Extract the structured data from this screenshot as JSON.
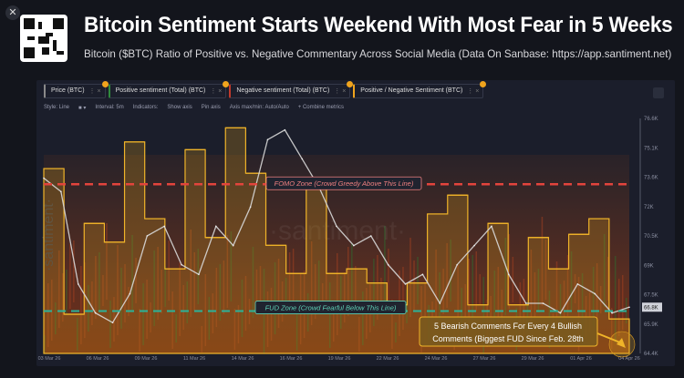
{
  "header": {
    "title": "Bitcoin Sentiment Starts Weekend With Most Fear in 5 Weeks",
    "subtitle": "Bitcoin ($BTC) Ratio of Positive vs. Negative Commentary Across Social Media (Data On Sanbase: https://app.santiment.net)",
    "close_icon": "close-icon",
    "qr_icon": "qr-code-icon"
  },
  "tabs": [
    {
      "label": "Price (BTC)",
      "color": "#8a8a8a"
    },
    {
      "label": "Positive sentiment (Total) (BTC)",
      "color": "#2f8a3c"
    },
    {
      "label": "Negative sentiment (Total) (BTC)",
      "color": "#c0392b"
    },
    {
      "label": "Positive / Negative Sentiment (BTC)",
      "color": "#f0a41d"
    }
  ],
  "options": {
    "style": "Style: Line",
    "interval": "Interval: 5m",
    "indicators": "Indicators:",
    "show_axis": "Show axis",
    "pin_axis": "Pin axis",
    "axis_maxmin": "Axis max/min: Auto/Auto",
    "combine": "+ Combine metrics"
  },
  "watermark": "·santiment·",
  "chart_data": {
    "type": "line",
    "x_ticks": [
      "03 Mar 26",
      "06 Mar 26",
      "09 Mar 26",
      "11 Mar 26",
      "14 Mar 26",
      "16 Mar 26",
      "19 Mar 26",
      "22 Mar 26",
      "24 Mar 26",
      "27 Mar 26",
      "29 Mar 26",
      "01 Apr 26",
      "04 Apr 26"
    ],
    "y_ticks": [
      "76.6K",
      "75.1K",
      "73.6K",
      "72K",
      "70.5K",
      "69K",
      "67.5K",
      "65.9K",
      "64.4K"
    ],
    "ylim": [
      64.4,
      76.6
    ],
    "current_price_label": "66.8K",
    "price_series": {
      "name": "Price (BTC)",
      "unit": "K USD",
      "values": [
        73.5,
        72.8,
        68,
        66.5,
        66,
        67.5,
        70.5,
        71,
        69,
        68.5,
        71,
        70,
        72,
        75.5,
        76,
        74.5,
        73,
        71,
        70,
        70.5,
        69,
        68,
        68.5,
        67,
        69,
        70,
        71,
        68.5,
        67,
        67,
        66.5,
        68,
        67.5,
        66.5,
        66.8
      ]
    },
    "ratio_series": {
      "name": "Positive / Negative Sentiment (BTC)",
      "values": [
        1.68,
        0.75,
        1.33,
        1.21,
        1.85,
        1.36,
        1.04,
        1.8,
        1.24,
        1.94,
        1.65,
        1.19,
        1.01,
        1.56,
        1.01,
        1.04,
        0.95,
        0.81,
        0.95,
        1.39,
        1.51,
        0.81,
        1.33,
        0.81,
        1.24,
        1.04,
        1.26,
        1.36,
        0.72
      ]
    },
    "fomo_level": 1.58,
    "fud_level": 0.77,
    "annotations": {
      "fomo": "FOMO Zone (Crowd Greedy Above This Line)",
      "fud": "FUD Zone (Crowd Fearful Below This Line)",
      "callout_line1": "5 Bearish Comments For Every 4 Bullish",
      "callout_line2": "Comments (Biggest FUD Since Feb. 28th"
    },
    "colors": {
      "price": "#d8d8d8",
      "ratio": "#f0b429",
      "fomo": "#e2443c",
      "fud": "#2bb39a"
    }
  }
}
